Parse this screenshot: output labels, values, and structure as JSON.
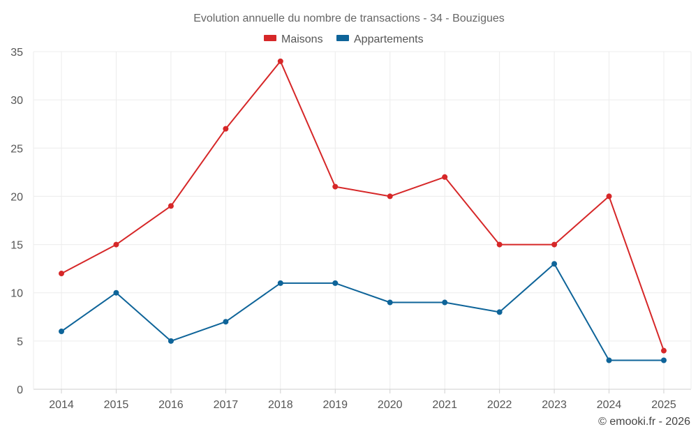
{
  "chart_data": {
    "type": "line",
    "title": "Evolution annuelle du nombre de transactions - 34 - Bouzigues",
    "categories": [
      "2014",
      "2015",
      "2016",
      "2017",
      "2018",
      "2019",
      "2020",
      "2021",
      "2022",
      "2023",
      "2024",
      "2025"
    ],
    "ylim": [
      0,
      35
    ],
    "yticks": [
      0,
      5,
      10,
      15,
      20,
      25,
      30,
      35
    ],
    "grid": true,
    "legend_position": "top-center",
    "series": [
      {
        "name": "Maisons",
        "color": "#d62728",
        "values": [
          12,
          15,
          19,
          27,
          34,
          21,
          20,
          22,
          15,
          15,
          20,
          4
        ]
      },
      {
        "name": "Appartements",
        "color": "#0e6499",
        "values": [
          6,
          10,
          5,
          7,
          11,
          11,
          9,
          9,
          8,
          13,
          3,
          3
        ]
      }
    ],
    "credit": "© emooki.fr - 2026"
  }
}
